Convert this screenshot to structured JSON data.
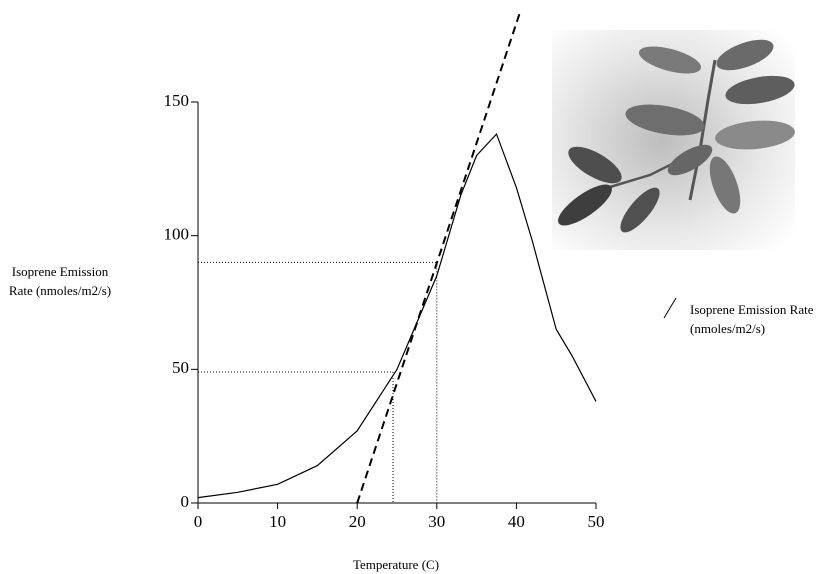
{
  "chart_data": {
    "type": "line",
    "x_label": "Temperature (C)",
    "y_label": "Isoprene Emission Rate (nmoles/m2/s)",
    "xlim": [
      0,
      50
    ],
    "ylim": [
      0,
      150
    ],
    "xticks": [
      0,
      10,
      20,
      30,
      40,
      50
    ],
    "yticks": [
      0,
      50,
      100,
      150
    ],
    "legend": "right",
    "series": [
      {
        "name": "Isoprene Emission Rate (nmoles/m2/s)",
        "color": "#000000",
        "dash": "solid",
        "x": [
          0,
          5,
          10,
          15,
          20,
          25,
          30,
          33,
          35,
          37.5,
          40,
          42,
          45,
          47,
          50
        ],
        "values": [
          2,
          4,
          7,
          14,
          27,
          50,
          85,
          115,
          130,
          138,
          118,
          98,
          65,
          55,
          38
        ]
      },
      {
        "color": "#000000",
        "dash": "dashed",
        "x": [
          20,
          40.5
        ],
        "values": [
          0,
          184
        ]
      }
    ],
    "guides": [
      {
        "x": 30,
        "y": 90
      },
      {
        "x": 24.5,
        "y": 49
      }
    ]
  }
}
